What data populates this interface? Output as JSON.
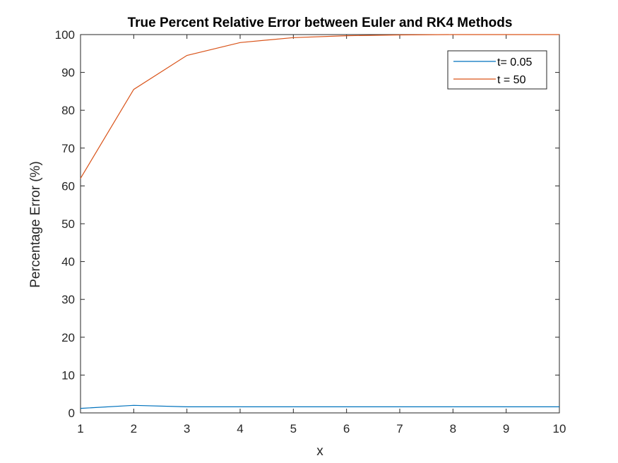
{
  "chart_data": {
    "type": "line",
    "title": "True Percent Relative Error between Euler and RK4 Methods",
    "xlabel": "x",
    "ylabel": "Percentage Error (%)",
    "xlim": [
      1,
      10
    ],
    "ylim": [
      0,
      100
    ],
    "x_ticks": [
      "1",
      "2",
      "3",
      "4",
      "5",
      "6",
      "7",
      "8",
      "9",
      "10"
    ],
    "y_ticks": [
      "0",
      "10",
      "20",
      "30",
      "40",
      "50",
      "60",
      "70",
      "80",
      "90",
      "100"
    ],
    "grid": false,
    "legend_position": "top-right",
    "x": [
      1,
      2,
      3,
      4,
      5,
      6,
      7,
      8,
      9,
      10
    ],
    "series": [
      {
        "name": "t= 0.05",
        "color": "#0072BD",
        "values": [
          1.2,
          2.0,
          1.6,
          1.6,
          1.6,
          1.6,
          1.6,
          1.6,
          1.6,
          1.6
        ]
      },
      {
        "name": "t = 50",
        "color": "#D95319",
        "values": [
          62.0,
          85.5,
          94.5,
          97.9,
          99.2,
          99.7,
          99.9,
          100.0,
          100.0,
          100.0
        ]
      }
    ]
  }
}
